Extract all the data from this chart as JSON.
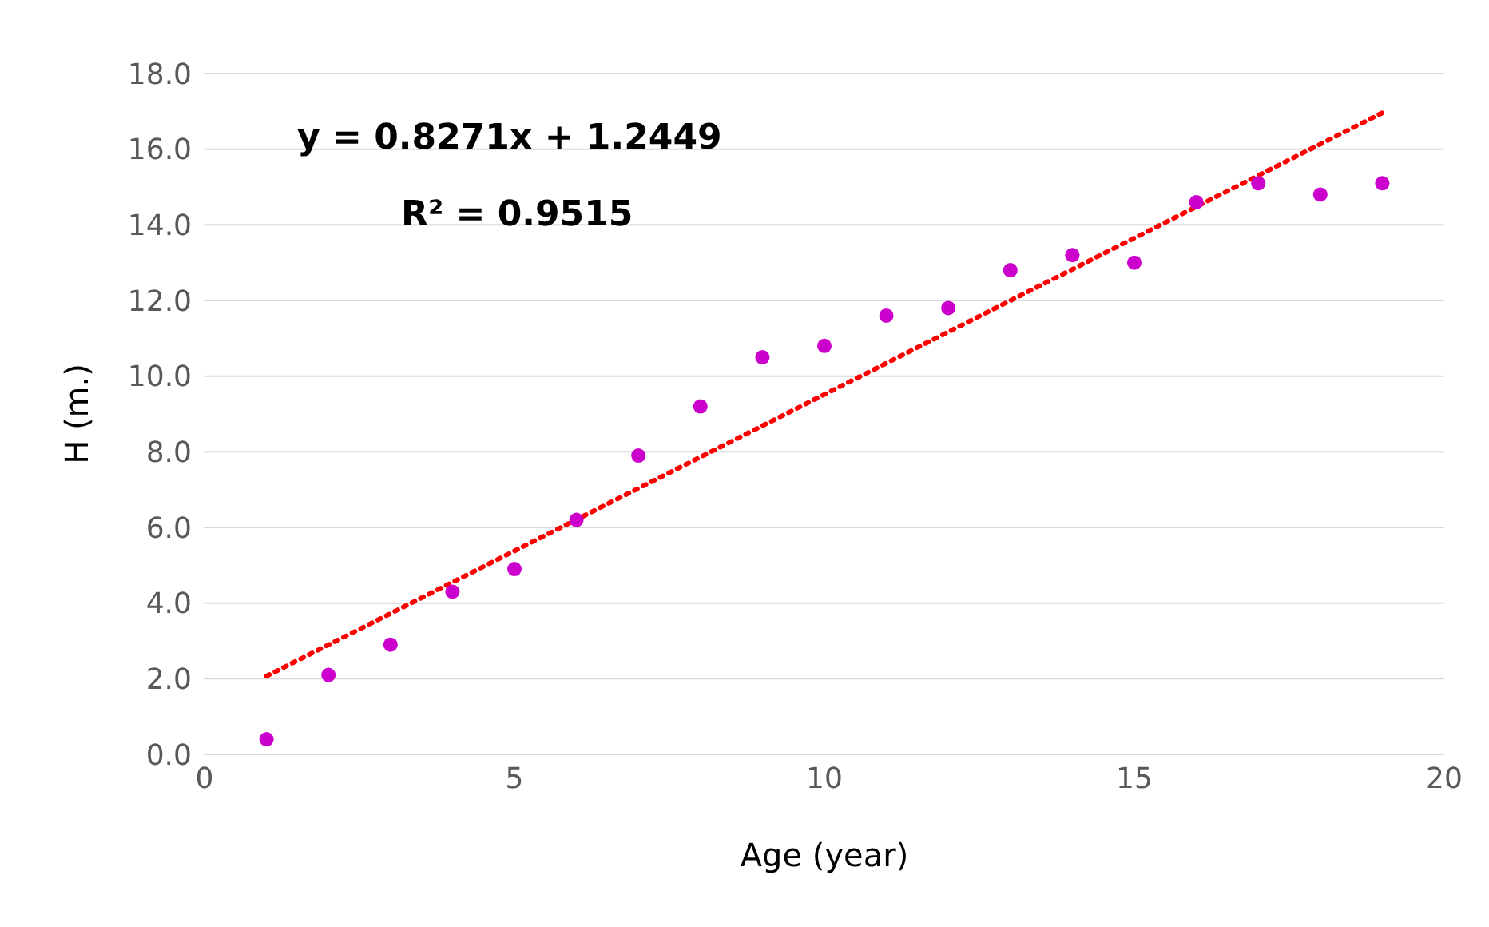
{
  "chart_data": {
    "type": "scatter",
    "xlabel": "Age (year)",
    "ylabel": "H (m.)",
    "annotations": [
      "y = 0.8271x + 1.2449",
      "R² = 0.9515"
    ],
    "x": [
      1,
      2,
      3,
      4,
      5,
      6,
      7,
      8,
      9,
      10,
      11,
      12,
      13,
      14,
      15,
      16,
      17,
      18,
      19
    ],
    "series": [
      {
        "color": "#cc00cc",
        "marker": "circle",
        "values": [
          0.4,
          2.1,
          2.9,
          4.3,
          4.9,
          6.2,
          7.9,
          9.2,
          10.5,
          10.8,
          11.6,
          11.8,
          12.8,
          13.2,
          13.0,
          14.6,
          15.1,
          14.8,
          15.1
        ]
      },
      {
        "type": "line",
        "color": "#ff0000",
        "line_style": "dotted",
        "marker": "none",
        "x": [
          1,
          19
        ],
        "values": [
          2.07,
          16.96
        ]
      }
    ],
    "xlim": [
      0,
      20
    ],
    "xticks": [
      0,
      5,
      10,
      15,
      20
    ],
    "ylim": [
      0,
      18
    ],
    "yticks": [
      {
        "value": 0,
        "label": "0.0"
      },
      {
        "value": 2,
        "label": "2.0"
      },
      {
        "value": 4,
        "label": "4.0"
      },
      {
        "value": 6,
        "label": "6.0"
      },
      {
        "value": 8,
        "label": "8.0"
      },
      {
        "value": 10,
        "label": "10.0"
      },
      {
        "value": 12,
        "label": "12.0"
      },
      {
        "value": 14,
        "label": "14.0"
      },
      {
        "value": 16,
        "label": "16.0"
      },
      {
        "value": 18,
        "label": "18.0"
      }
    ],
    "grid": "y",
    "legend": false
  }
}
